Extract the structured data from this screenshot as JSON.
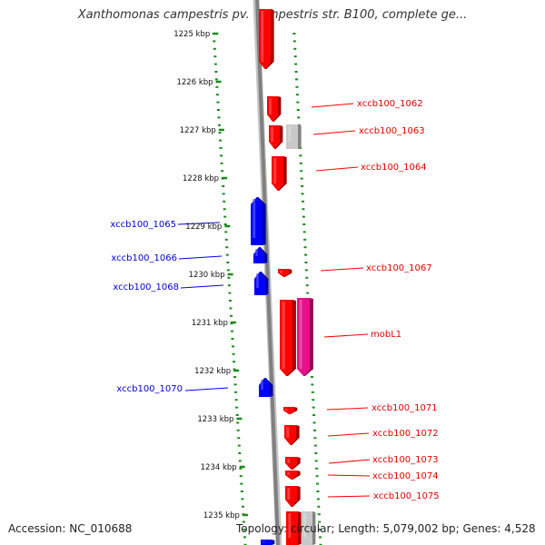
{
  "title": "Xanthomonas campestris pv. campestris str. B100, complete ge...",
  "footer": {
    "accession": "Accession: NC_010688",
    "topology": "Topology: circular; Length: 5,079,002 bp; Genes: 4,528"
  },
  "colors": {
    "forward_strand": "#ff0000",
    "reverse_strand": "#0000ff",
    "pseudo_gene": "#c8c8c8",
    "mobile_gene": "#e8108a",
    "ruler_ticks": "#1a8a1a",
    "backbone": "#808080"
  },
  "ruler": {
    "unit": "kbp",
    "labels": [
      "1225 kbp",
      "1226 kbp",
      "1227 kbp",
      "1228 kbp",
      "1229 kbp",
      "1230 kbp",
      "1231 kbp",
      "1232 kbp",
      "1233 kbp",
      "1234 kbp",
      "1235 kbp"
    ]
  },
  "gene_labels": {
    "forward": [
      "xccb100_1062",
      "xccb100_1063",
      "xccb100_1064",
      "xccb100_1067",
      "mobL1",
      "xccb100_1071",
      "xccb100_1072",
      "xccb100_1073",
      "xccb100_1074",
      "xccb100_1075"
    ],
    "reverse": [
      "xccb100_1065",
      "xccb100_1066",
      "xccb100_1068",
      "xccb100_1070"
    ]
  }
}
